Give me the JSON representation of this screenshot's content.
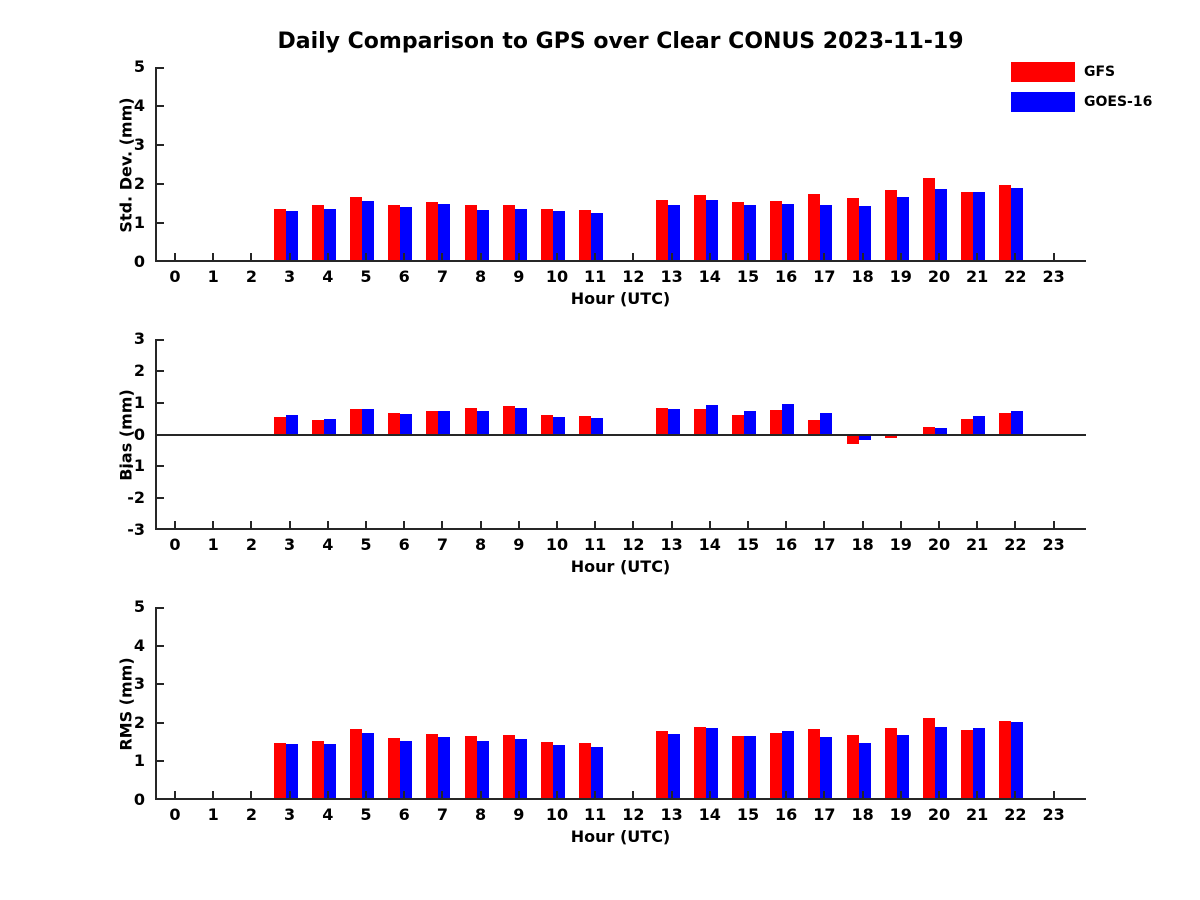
{
  "title": "Daily Comparison to GPS over Clear CONUS 2023-11-19",
  "legend": {
    "position": "top-right",
    "entries": [
      {
        "label": "GFS",
        "color": "#ff0000"
      },
      {
        "label": "GOES-16",
        "color": "#0000ff"
      }
    ]
  },
  "chart_data": [
    {
      "type": "bar",
      "title": "",
      "ylabel": "Std. Dev. (mm)",
      "xlabel": "Hour (UTC)",
      "ylim": [
        0,
        5
      ],
      "yticks": [
        0,
        1,
        2,
        3,
        4,
        5
      ],
      "grid": false,
      "categories": [
        "0",
        "1",
        "2",
        "3",
        "4",
        "5",
        "6",
        "7",
        "8",
        "9",
        "10",
        "11",
        "12",
        "13",
        "14",
        "15",
        "16",
        "17",
        "18",
        "19",
        "20",
        "21",
        "22",
        "23"
      ],
      "series": [
        {
          "name": "GFS",
          "color": "#ff0000",
          "values": [
            null,
            null,
            null,
            1.35,
            1.45,
            1.67,
            1.47,
            1.55,
            1.46,
            1.45,
            1.37,
            1.33,
            null,
            1.58,
            1.71,
            1.54,
            1.57,
            1.75,
            1.63,
            1.84,
            2.15,
            1.8,
            1.97,
            null
          ]
        },
        {
          "name": "GOES-16",
          "color": "#0000ff",
          "values": [
            null,
            null,
            null,
            1.3,
            1.37,
            1.57,
            1.41,
            1.49,
            1.33,
            1.36,
            1.31,
            1.25,
            null,
            1.47,
            1.6,
            1.45,
            1.5,
            1.45,
            1.44,
            1.67,
            1.88,
            1.8,
            1.9,
            null
          ]
        }
      ]
    },
    {
      "type": "bar",
      "title": "",
      "ylabel": "Bias (mm)",
      "xlabel": "Hour (UTC)",
      "ylim": [
        -3,
        3
      ],
      "yticks": [
        -3,
        -2,
        -1,
        0,
        1,
        2,
        3
      ],
      "grid": false,
      "zero_line": true,
      "categories": [
        "0",
        "1",
        "2",
        "3",
        "4",
        "5",
        "6",
        "7",
        "8",
        "9",
        "10",
        "11",
        "12",
        "13",
        "14",
        "15",
        "16",
        "17",
        "18",
        "19",
        "20",
        "21",
        "22",
        "23"
      ],
      "series": [
        {
          "name": "GFS",
          "color": "#ff0000",
          "values": [
            null,
            null,
            null,
            0.55,
            0.45,
            0.8,
            0.67,
            0.73,
            0.82,
            0.9,
            0.61,
            0.57,
            null,
            0.84,
            0.8,
            0.62,
            0.78,
            0.47,
            -0.3,
            -0.1,
            0.25,
            0.5,
            0.68,
            null
          ]
        },
        {
          "name": "GOES-16",
          "color": "#0000ff",
          "values": [
            null,
            null,
            null,
            0.6,
            0.49,
            0.8,
            0.63,
            0.73,
            0.73,
            0.83,
            0.54,
            0.51,
            null,
            0.8,
            0.92,
            0.74,
            0.97,
            0.67,
            -0.18,
            -0.04,
            0.22,
            0.58,
            0.74,
            null
          ]
        }
      ]
    },
    {
      "type": "bar",
      "title": "",
      "ylabel": "RMS (mm)",
      "xlabel": "Hour (UTC)",
      "ylim": [
        0,
        5
      ],
      "yticks": [
        0,
        1,
        2,
        3,
        4,
        5
      ],
      "grid": false,
      "categories": [
        "0",
        "1",
        "2",
        "3",
        "4",
        "5",
        "6",
        "7",
        "8",
        "9",
        "10",
        "11",
        "12",
        "13",
        "14",
        "15",
        "16",
        "17",
        "18",
        "19",
        "20",
        "21",
        "22",
        "23"
      ],
      "series": [
        {
          "name": "GFS",
          "color": "#ff0000",
          "values": [
            null,
            null,
            null,
            1.47,
            1.52,
            1.83,
            1.6,
            1.7,
            1.67,
            1.68,
            1.5,
            1.47,
            null,
            1.8,
            1.9,
            1.65,
            1.75,
            1.83,
            1.68,
            1.87,
            2.13,
            1.82,
            2.05,
            null
          ]
        },
        {
          "name": "GOES-16",
          "color": "#0000ff",
          "values": [
            null,
            null,
            null,
            1.45,
            1.45,
            1.75,
            1.53,
            1.63,
            1.53,
            1.58,
            1.43,
            1.38,
            null,
            1.7,
            1.86,
            1.65,
            1.78,
            1.63,
            1.47,
            1.68,
            1.89,
            1.87,
            2.02,
            null
          ]
        }
      ]
    }
  ]
}
